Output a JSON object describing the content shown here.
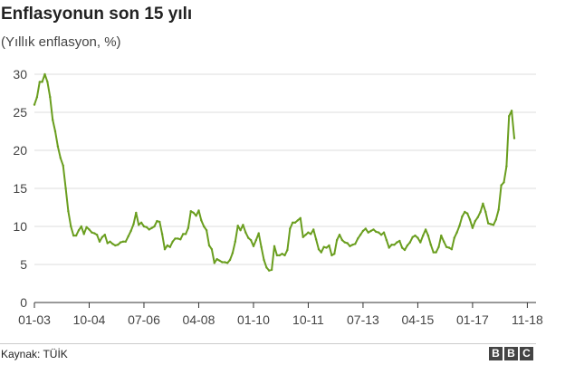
{
  "chart_data": {
    "type": "line",
    "title": "Enflasyonun son 15 yılı",
    "subtitle": "(Yıllık enflasyon, %)",
    "xlabel": "",
    "ylabel": "",
    "ylim": [
      0,
      30
    ],
    "yticks": [
      0,
      5,
      10,
      15,
      20,
      25,
      30
    ],
    "xtick_labels": [
      "01-03",
      "10-04",
      "07-06",
      "04-08",
      "01-10",
      "10-11",
      "07-13",
      "04-15",
      "01-17",
      "11-18"
    ],
    "grid": true,
    "line_color": "#6a9e1f",
    "series": [
      {
        "name": "",
        "points": [
          [
            0,
            26
          ],
          [
            1,
            27
          ],
          [
            2,
            29
          ],
          [
            3,
            29
          ],
          [
            4,
            30
          ],
          [
            5,
            29
          ],
          [
            6,
            27
          ],
          [
            7,
            24
          ],
          [
            8,
            22.5
          ],
          [
            9,
            20.5
          ],
          [
            10,
            19
          ],
          [
            11,
            18
          ],
          [
            12,
            15
          ],
          [
            13,
            12
          ],
          [
            14,
            10
          ],
          [
            15,
            8.8
          ],
          [
            16,
            8.8
          ],
          [
            17,
            9.5
          ],
          [
            18,
            10
          ],
          [
            19,
            9
          ],
          [
            20,
            9.9
          ],
          [
            21,
            9.6
          ],
          [
            22,
            9.2
          ],
          [
            23,
            9.1
          ],
          [
            24,
            8.9
          ],
          [
            25,
            8.0
          ],
          [
            26,
            8.6
          ],
          [
            27,
            8.9
          ],
          [
            28,
            7.8
          ],
          [
            29,
            8.0
          ],
          [
            30,
            7.7
          ],
          [
            31,
            7.5
          ],
          [
            32,
            7.6
          ],
          [
            33,
            7.9
          ],
          [
            34,
            8.0
          ],
          [
            35,
            8.0
          ],
          [
            36,
            8.7
          ],
          [
            37,
            9.4
          ],
          [
            38,
            10.3
          ],
          [
            39,
            11.8
          ],
          [
            40,
            10.2
          ],
          [
            41,
            10.5
          ],
          [
            42,
            10.0
          ],
          [
            43,
            9.9
          ],
          [
            44,
            9.6
          ],
          [
            45,
            9.8
          ],
          [
            46,
            10.0
          ],
          [
            47,
            10.7
          ],
          [
            48,
            10.6
          ],
          [
            49,
            9.0
          ],
          [
            50,
            7.0
          ],
          [
            51,
            7.5
          ],
          [
            52,
            7.3
          ],
          [
            53,
            8.0
          ],
          [
            54,
            8.4
          ],
          [
            55,
            8.4
          ],
          [
            56,
            8.3
          ],
          [
            57,
            9.0
          ],
          [
            58,
            9.0
          ],
          [
            59,
            9.8
          ],
          [
            60,
            12.0
          ],
          [
            61,
            11.8
          ],
          [
            62,
            11.4
          ],
          [
            63,
            12.1
          ],
          [
            64,
            10.8
          ],
          [
            65,
            10.0
          ],
          [
            66,
            9.5
          ],
          [
            67,
            7.5
          ],
          [
            68,
            7.0
          ],
          [
            69,
            5.2
          ],
          [
            70,
            5.7
          ],
          [
            71,
            5.5
          ],
          [
            72,
            5.3
          ],
          [
            73,
            5.3
          ],
          [
            74,
            5.2
          ],
          [
            75,
            5.6
          ],
          [
            76,
            6.5
          ],
          [
            77,
            8.0
          ],
          [
            78,
            10.1
          ],
          [
            79,
            9.5
          ],
          [
            80,
            10.2
          ],
          [
            81,
            9.2
          ],
          [
            82,
            8.5
          ],
          [
            83,
            8.2
          ],
          [
            84,
            7.4
          ],
          [
            85,
            8.2
          ],
          [
            86,
            9.1
          ],
          [
            87,
            7.3
          ],
          [
            88,
            5.6
          ],
          [
            89,
            4.6
          ],
          [
            90,
            4.2
          ],
          [
            91,
            4.3
          ],
          [
            92,
            7.4
          ],
          [
            93,
            6.2
          ],
          [
            94,
            6.2
          ],
          [
            95,
            6.4
          ],
          [
            96,
            6.2
          ],
          [
            97,
            6.9
          ],
          [
            98,
            9.7
          ],
          [
            99,
            10.5
          ],
          [
            100,
            10.5
          ],
          [
            101,
            10.8
          ],
          [
            102,
            11.1
          ],
          [
            103,
            8.6
          ],
          [
            104,
            8.9
          ],
          [
            105,
            9.2
          ],
          [
            106,
            9.0
          ],
          [
            107,
            9.6
          ],
          [
            108,
            8.3
          ],
          [
            109,
            7.0
          ],
          [
            110,
            6.6
          ],
          [
            111,
            7.3
          ],
          [
            112,
            7.2
          ],
          [
            113,
            7.5
          ],
          [
            114,
            6.2
          ],
          [
            115,
            6.4
          ],
          [
            116,
            8.2
          ],
          [
            117,
            8.9
          ],
          [
            118,
            8.2
          ],
          [
            119,
            7.9
          ],
          [
            120,
            7.8
          ],
          [
            121,
            7.4
          ],
          [
            122,
            7.6
          ],
          [
            123,
            7.7
          ],
          [
            124,
            8.4
          ],
          [
            125,
            8.9
          ],
          [
            126,
            9.4
          ],
          [
            127,
            9.7
          ],
          [
            128,
            9.2
          ],
          [
            129,
            9.4
          ],
          [
            130,
            9.6
          ],
          [
            131,
            9.3
          ],
          [
            132,
            9.2
          ],
          [
            133,
            8.9
          ],
          [
            134,
            9.2
          ],
          [
            135,
            8.2
          ],
          [
            136,
            7.2
          ],
          [
            137,
            7.6
          ],
          [
            138,
            7.6
          ],
          [
            139,
            7.9
          ],
          [
            140,
            8.1
          ],
          [
            141,
            7.2
          ],
          [
            142,
            6.9
          ],
          [
            143,
            7.5
          ],
          [
            144,
            7.9
          ],
          [
            145,
            8.6
          ],
          [
            146,
            8.8
          ],
          [
            147,
            8.5
          ],
          [
            148,
            7.9
          ],
          [
            149,
            8.8
          ],
          [
            150,
            9.6
          ],
          [
            151,
            8.8
          ],
          [
            152,
            7.6
          ],
          [
            153,
            6.6
          ],
          [
            154,
            6.6
          ],
          [
            155,
            7.3
          ],
          [
            156,
            8.8
          ],
          [
            157,
            8.0
          ],
          [
            158,
            7.3
          ],
          [
            159,
            7.2
          ],
          [
            160,
            7.0
          ],
          [
            161,
            8.5
          ],
          [
            162,
            9.2
          ],
          [
            163,
            10.1
          ],
          [
            164,
            11.3
          ],
          [
            165,
            11.9
          ],
          [
            166,
            11.7
          ],
          [
            167,
            10.9
          ],
          [
            168,
            9.8
          ],
          [
            169,
            10.7
          ],
          [
            170,
            11.2
          ],
          [
            171,
            11.9
          ],
          [
            172,
            13.0
          ],
          [
            173,
            11.9
          ],
          [
            174,
            10.4
          ],
          [
            175,
            10.3
          ],
          [
            176,
            10.2
          ],
          [
            177,
            10.9
          ],
          [
            178,
            12.2
          ],
          [
            179,
            15.4
          ],
          [
            180,
            15.8
          ],
          [
            181,
            17.9
          ],
          [
            182,
            24.5
          ],
          [
            183,
            25.2
          ],
          [
            184,
            21.6
          ]
        ]
      }
    ]
  },
  "footer": {
    "source": "Kaynak: TÜİK",
    "logo_letters": [
      "B",
      "B",
      "C"
    ]
  }
}
